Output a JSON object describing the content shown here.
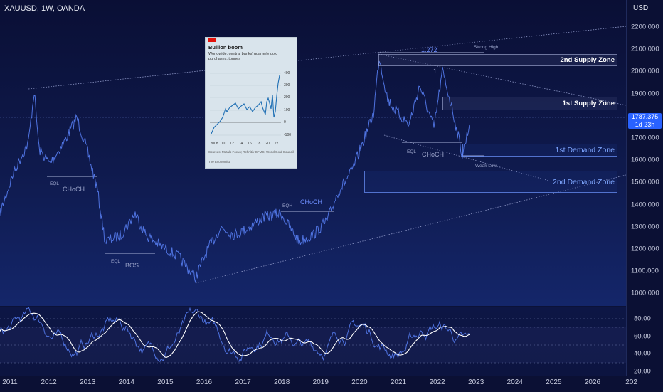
{
  "header": {
    "symbol_title": "XAUUSD, 1W, OANDA",
    "currency": "USD"
  },
  "price_axis": {
    "ticks": [
      "2200.000",
      "2100.000",
      "2000.000",
      "1900.000",
      "1800.000",
      "1700.000",
      "1600.000",
      "1500.000",
      "1400.000",
      "1300.000",
      "1200.000",
      "1100.000",
      "1000.000"
    ],
    "current_price": "1787.375",
    "countdown": "1d 23h"
  },
  "rsi_axis": {
    "ticks": [
      "80.00",
      "60.00",
      "40.00",
      "20.00"
    ]
  },
  "time_axis": {
    "years": [
      "2011",
      "2012",
      "2013",
      "2014",
      "2015",
      "2016",
      "2017",
      "2018",
      "2019",
      "2020",
      "2021",
      "2022",
      "2023",
      "2024",
      "2025",
      "2026",
      "202"
    ]
  },
  "zones": {
    "supply_2": "2nd Supply Zone",
    "supply_1": "1st Supply Zone",
    "demand_1": "1st Demand Zone",
    "demand_2": "2nd Demand Zone"
  },
  "annotations": {
    "choch_2011": "CHoCH",
    "eql_2011": "EQL",
    "eql_2014": "EQL",
    "bos_2014": "BOS",
    "eqh_2018": "EQH",
    "choch_2019": "CHoCH",
    "fib_1272": "1.272",
    "fib_1": "1",
    "strong_high": "Strong High",
    "eql_2021": "EQL",
    "choch_2022": "CHoCH",
    "weak_low": "Weak Low"
  },
  "inset": {
    "title": "Bullion boom",
    "subtitle": "Worldwide, central banks' quarterly gold purchases, tonnes",
    "y_ticks": [
      "400",
      "300",
      "200",
      "100",
      "0",
      "-100"
    ],
    "x_ticks": [
      "2008",
      "10",
      "12",
      "14",
      "16",
      "18",
      "20",
      "22"
    ],
    "source": "Sources: Metals Focus; Refinitiv GFMS; World Gold Council",
    "brand": "The Economist",
    "line_color": "#1f6fb4"
  },
  "colors": {
    "price_line": "#4f73e0",
    "rsi_line": "#4f73e0",
    "rsi_ma": "#ffffff",
    "accent": "#2962ff"
  }
}
